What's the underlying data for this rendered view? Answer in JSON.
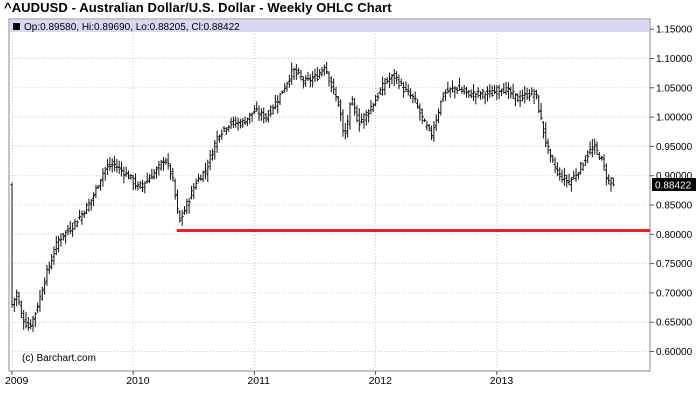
{
  "title": "^AUDUSD - Australian Dollar/U.S. Dollar - Weekly OHLC Chart",
  "legend_text": "Op:0.89580, Hi:0.89690, Lo:0.88205, Cl:0.88422",
  "watermark": "(c) Barchart.com",
  "last_price_label": "0.88422",
  "colors": {
    "support_line": "#e8202a",
    "legend_bg": "#d8d8f0",
    "bars": "#111111",
    "last_label_bg": "#000000"
  },
  "chart_data": {
    "type": "ohlc",
    "title": "^AUDUSD - Australian Dollar/U.S. Dollar - Weekly OHLC Chart",
    "x_tick_labels": [
      "2009",
      "2010",
      "2011",
      "2012",
      "2013"
    ],
    "y_tick_labels": [
      "0.60000",
      "0.65000",
      "0.70000",
      "0.75000",
      "0.80000",
      "0.85000",
      "0.90000",
      "0.95000",
      "1.00000",
      "1.05000",
      "1.10000",
      "1.15000"
    ],
    "y_range": [
      0.575,
      1.16
    ],
    "x_range": [
      2009.0,
      2013.96
    ],
    "grid": true,
    "last": {
      "open": 0.8958,
      "high": 0.8969,
      "low": 0.88205,
      "close": 0.88422
    },
    "support_line": {
      "value": 0.8065,
      "from": 2010.36,
      "to": 2013.96
    },
    "anchors": [
      {
        "t": 2009.0,
        "v": 0.68
      },
      {
        "t": 2009.04,
        "v": 0.7
      },
      {
        "t": 2009.08,
        "v": 0.66
      },
      {
        "t": 2009.14,
        "v": 0.64
      },
      {
        "t": 2009.2,
        "v": 0.67
      },
      {
        "t": 2009.28,
        "v": 0.73
      },
      {
        "t": 2009.38,
        "v": 0.79
      },
      {
        "t": 2009.48,
        "v": 0.81
      },
      {
        "t": 2009.56,
        "v": 0.83
      },
      {
        "t": 2009.66,
        "v": 0.86
      },
      {
        "t": 2009.76,
        "v": 0.91
      },
      {
        "t": 2009.84,
        "v": 0.92
      },
      {
        "t": 2009.9,
        "v": 0.91
      },
      {
        "t": 2009.96,
        "v": 0.9
      },
      {
        "t": 2010.04,
        "v": 0.88
      },
      {
        "t": 2010.1,
        "v": 0.89
      },
      {
        "t": 2010.2,
        "v": 0.91
      },
      {
        "t": 2010.26,
        "v": 0.93
      },
      {
        "t": 2010.32,
        "v": 0.9
      },
      {
        "t": 2010.38,
        "v": 0.82
      },
      {
        "t": 2010.44,
        "v": 0.85
      },
      {
        "t": 2010.52,
        "v": 0.89
      },
      {
        "t": 2010.6,
        "v": 0.91
      },
      {
        "t": 2010.7,
        "v": 0.97
      },
      {
        "t": 2010.8,
        "v": 0.99
      },
      {
        "t": 2010.9,
        "v": 0.99
      },
      {
        "t": 2011.0,
        "v": 1.01
      },
      {
        "t": 2011.1,
        "v": 1.0
      },
      {
        "t": 2011.22,
        "v": 1.04
      },
      {
        "t": 2011.32,
        "v": 1.08
      },
      {
        "t": 2011.42,
        "v": 1.06
      },
      {
        "t": 2011.52,
        "v": 1.07
      },
      {
        "t": 2011.58,
        "v": 1.09
      },
      {
        "t": 2011.64,
        "v": 1.05
      },
      {
        "t": 2011.7,
        "v": 1.02
      },
      {
        "t": 2011.74,
        "v": 0.96
      },
      {
        "t": 2011.8,
        "v": 1.03
      },
      {
        "t": 2011.86,
        "v": 0.99
      },
      {
        "t": 2011.94,
        "v": 1.01
      },
      {
        "t": 2012.0,
        "v": 1.03
      },
      {
        "t": 2012.08,
        "v": 1.06
      },
      {
        "t": 2012.16,
        "v": 1.07
      },
      {
        "t": 2012.22,
        "v": 1.05
      },
      {
        "t": 2012.32,
        "v": 1.03
      },
      {
        "t": 2012.4,
        "v": 0.99
      },
      {
        "t": 2012.46,
        "v": 0.97
      },
      {
        "t": 2012.56,
        "v": 1.04
      },
      {
        "t": 2012.66,
        "v": 1.05
      },
      {
        "t": 2012.76,
        "v": 1.04
      },
      {
        "t": 2012.86,
        "v": 1.04
      },
      {
        "t": 2012.96,
        "v": 1.04
      },
      {
        "t": 2013.04,
        "v": 1.05
      },
      {
        "t": 2013.12,
        "v": 1.04
      },
      {
        "t": 2013.18,
        "v": 1.03
      },
      {
        "t": 2013.26,
        "v": 1.04
      },
      {
        "t": 2013.32,
        "v": 1.04
      },
      {
        "t": 2013.38,
        "v": 0.98
      },
      {
        "t": 2013.44,
        "v": 0.93
      },
      {
        "t": 2013.52,
        "v": 0.9
      },
      {
        "t": 2013.6,
        "v": 0.89
      },
      {
        "t": 2013.68,
        "v": 0.91
      },
      {
        "t": 2013.76,
        "v": 0.94
      },
      {
        "t": 2013.8,
        "v": 0.95
      },
      {
        "t": 2013.86,
        "v": 0.93
      },
      {
        "t": 2013.92,
        "v": 0.89
      },
      {
        "t": 2013.96,
        "v": 0.884
      }
    ]
  }
}
